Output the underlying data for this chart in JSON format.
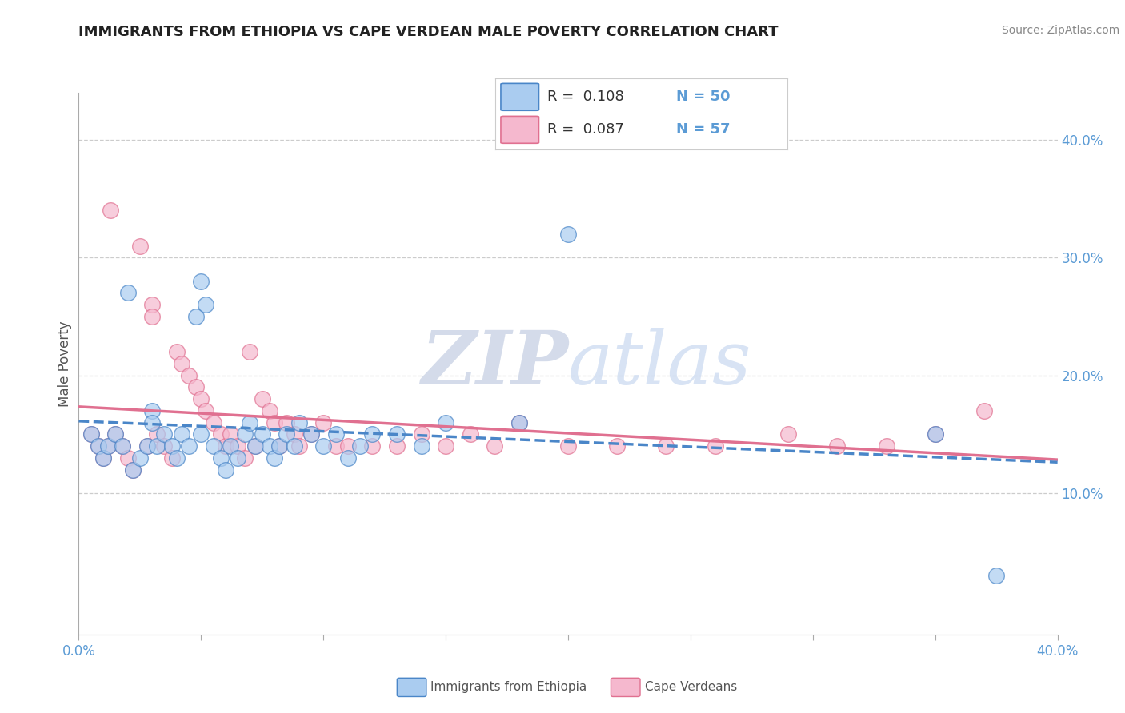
{
  "title": "IMMIGRANTS FROM ETHIOPIA VS CAPE VERDEAN MALE POVERTY CORRELATION CHART",
  "source": "Source: ZipAtlas.com",
  "ylabel": "Male Poverty",
  "ylabel_right_ticks": [
    "10.0%",
    "20.0%",
    "30.0%",
    "40.0%"
  ],
  "ylabel_right_vals": [
    0.1,
    0.2,
    0.3,
    0.4
  ],
  "xlim": [
    0.0,
    0.4
  ],
  "ylim": [
    -0.02,
    0.44
  ],
  "series1_color": "#aaccf0",
  "series2_color": "#f5b8ce",
  "series1_label": "Immigrants from Ethiopia",
  "series2_label": "Cape Verdeans",
  "series1_line_color": "#4a86c8",
  "series2_line_color": "#e07090",
  "background_color": "#ffffff",
  "watermark_zip": "ZIP",
  "watermark_atlas": "atlas",
  "scatter1_x": [
    0.005,
    0.008,
    0.01,
    0.012,
    0.015,
    0.018,
    0.02,
    0.022,
    0.025,
    0.028,
    0.03,
    0.03,
    0.032,
    0.035,
    0.038,
    0.04,
    0.042,
    0.045,
    0.048,
    0.05,
    0.05,
    0.052,
    0.055,
    0.058,
    0.06,
    0.062,
    0.065,
    0.068,
    0.07,
    0.072,
    0.075,
    0.078,
    0.08,
    0.082,
    0.085,
    0.088,
    0.09,
    0.095,
    0.1,
    0.105,
    0.11,
    0.115,
    0.12,
    0.13,
    0.14,
    0.15,
    0.18,
    0.2,
    0.35,
    0.375
  ],
  "scatter1_y": [
    0.15,
    0.14,
    0.13,
    0.14,
    0.15,
    0.14,
    0.27,
    0.12,
    0.13,
    0.14,
    0.17,
    0.16,
    0.14,
    0.15,
    0.14,
    0.13,
    0.15,
    0.14,
    0.25,
    0.15,
    0.28,
    0.26,
    0.14,
    0.13,
    0.12,
    0.14,
    0.13,
    0.15,
    0.16,
    0.14,
    0.15,
    0.14,
    0.13,
    0.14,
    0.15,
    0.14,
    0.16,
    0.15,
    0.14,
    0.15,
    0.13,
    0.14,
    0.15,
    0.15,
    0.14,
    0.16,
    0.16,
    0.32,
    0.15,
    0.03
  ],
  "scatter2_x": [
    0.005,
    0.008,
    0.01,
    0.012,
    0.013,
    0.015,
    0.018,
    0.02,
    0.022,
    0.025,
    0.028,
    0.03,
    0.03,
    0.032,
    0.035,
    0.038,
    0.04,
    0.042,
    0.045,
    0.048,
    0.05,
    0.052,
    0.055,
    0.058,
    0.06,
    0.062,
    0.065,
    0.068,
    0.07,
    0.072,
    0.075,
    0.078,
    0.08,
    0.082,
    0.085,
    0.088,
    0.09,
    0.095,
    0.1,
    0.105,
    0.11,
    0.12,
    0.13,
    0.14,
    0.15,
    0.16,
    0.17,
    0.18,
    0.2,
    0.22,
    0.24,
    0.26,
    0.29,
    0.31,
    0.33,
    0.35,
    0.37
  ],
  "scatter2_y": [
    0.15,
    0.14,
    0.13,
    0.14,
    0.34,
    0.15,
    0.14,
    0.13,
    0.12,
    0.31,
    0.14,
    0.26,
    0.25,
    0.15,
    0.14,
    0.13,
    0.22,
    0.21,
    0.2,
    0.19,
    0.18,
    0.17,
    0.16,
    0.15,
    0.14,
    0.15,
    0.14,
    0.13,
    0.22,
    0.14,
    0.18,
    0.17,
    0.16,
    0.14,
    0.16,
    0.15,
    0.14,
    0.15,
    0.16,
    0.14,
    0.14,
    0.14,
    0.14,
    0.15,
    0.14,
    0.15,
    0.14,
    0.16,
    0.14,
    0.14,
    0.14,
    0.14,
    0.15,
    0.14,
    0.14,
    0.15,
    0.17
  ]
}
